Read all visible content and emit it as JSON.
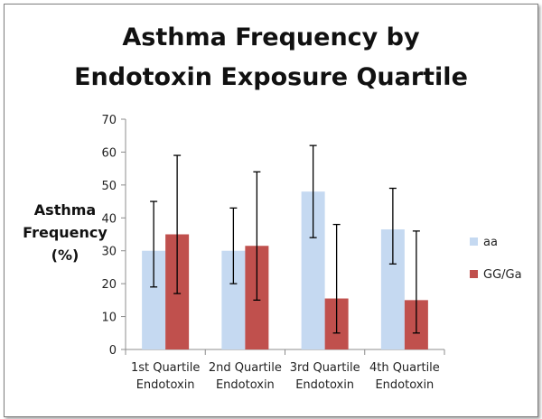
{
  "chart_data": {
    "type": "bar",
    "title": [
      "Asthma Frequency by",
      "Endotoxin Exposure Quartile"
    ],
    "ylabel": [
      "Asthma",
      "Frequency",
      "(%)"
    ],
    "categories": [
      [
        "1st Quartile",
        "Endotoxin"
      ],
      [
        "2nd Quartile",
        "Endotoxin"
      ],
      [
        "3rd Quartile",
        "Endotoxin"
      ],
      [
        "4th Quartile",
        "Endotoxin"
      ]
    ],
    "ylim": [
      0,
      70
    ],
    "yticks": [
      "0",
      "10",
      "20",
      "30",
      "40",
      "50",
      "60",
      "70"
    ],
    "grid": false,
    "legend_position": "right",
    "series": [
      {
        "name": "aa",
        "color": "#c5d9f1",
        "values": [
          30,
          30,
          48,
          36.5
        ],
        "err_low": [
          19,
          20,
          34,
          26
        ],
        "err_high": [
          45,
          43,
          62,
          49
        ]
      },
      {
        "name": "GG/Ga",
        "color": "#c0504d",
        "values": [
          35,
          31.5,
          15.5,
          15
        ],
        "err_low": [
          17,
          15,
          5,
          5
        ],
        "err_high": [
          59,
          54,
          38,
          36
        ]
      }
    ]
  }
}
